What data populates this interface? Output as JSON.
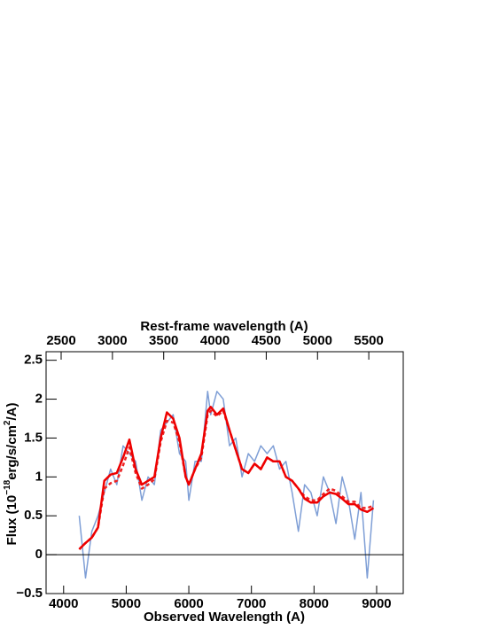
{
  "chart_data": {
    "type": "line",
    "xlabel": "Observed Wavelength (A)",
    "x2label": "Rest-frame wavelength (A)",
    "ylabel_parts": [
      "Flux (10",
      "−18",
      "erg/s/cm",
      "2",
      "/A)"
    ],
    "x": [
      4250,
      4350,
      4450,
      4550,
      4650,
      4750,
      4850,
      4950,
      5050,
      5150,
      5250,
      5350,
      5450,
      5550,
      5650,
      5750,
      5850,
      5950,
      6000,
      6100,
      6200,
      6300,
      6350,
      6450,
      6550,
      6650,
      6750,
      6850,
      6950,
      7050,
      7150,
      7250,
      7350,
      7450,
      7550,
      7650,
      7750,
      7850,
      7950,
      8050,
      8150,
      8250,
      8350,
      8450,
      8550,
      8650,
      8750,
      8850,
      8950
    ],
    "series": [
      {
        "color": "#7f9fd6",
        "style": "solid",
        "values": [
          0.5,
          -0.3,
          0.3,
          0.5,
          0.8,
          1.1,
          0.9,
          1.4,
          1.3,
          1.2,
          0.7,
          1.0,
          0.9,
          1.6,
          1.7,
          1.8,
          1.3,
          1.2,
          0.7,
          1.2,
          1.2,
          2.1,
          1.8,
          2.1,
          2.0,
          1.4,
          1.5,
          1.0,
          1.3,
          1.2,
          1.4,
          1.3,
          1.4,
          1.1,
          1.2,
          0.8,
          0.3,
          0.9,
          0.8,
          0.5,
          1.0,
          0.8,
          0.4,
          1.0,
          0.7,
          0.2,
          0.8,
          -0.3,
          0.7
        ]
      },
      {
        "color": "#ee2222",
        "style": "dashed",
        "values": [
          0.07,
          0.15,
          0.22,
          0.35,
          0.85,
          0.92,
          0.95,
          1.15,
          1.38,
          1.05,
          0.85,
          0.9,
          0.97,
          1.45,
          1.72,
          1.7,
          1.45,
          1.0,
          0.9,
          1.1,
          1.25,
          1.8,
          1.85,
          1.78,
          1.85,
          1.6,
          1.35,
          1.1,
          1.05,
          1.17,
          1.1,
          1.25,
          1.2,
          1.2,
          1.0,
          0.95,
          0.85,
          0.75,
          0.7,
          0.7,
          0.78,
          0.85,
          0.82,
          0.75,
          0.68,
          0.68,
          0.6,
          0.6,
          0.63
        ]
      },
      {
        "color": "#ee0000",
        "style": "solid",
        "values": [
          0.07,
          0.15,
          0.22,
          0.35,
          0.95,
          1.03,
          1.05,
          1.25,
          1.48,
          1.1,
          0.9,
          0.95,
          1.0,
          1.5,
          1.83,
          1.75,
          1.5,
          1.0,
          0.9,
          1.1,
          1.3,
          1.85,
          1.9,
          1.8,
          1.88,
          1.6,
          1.35,
          1.1,
          1.05,
          1.17,
          1.1,
          1.25,
          1.2,
          1.2,
          1.0,
          0.95,
          0.85,
          0.72,
          0.67,
          0.67,
          0.75,
          0.8,
          0.78,
          0.72,
          0.65,
          0.65,
          0.58,
          0.55,
          0.6
        ]
      }
    ],
    "xlim": [
      3720,
      9425
    ],
    "xticks": [
      4000,
      5000,
      6000,
      7000,
      8000,
      9000
    ],
    "x2lim": [
      2353,
      5836
    ],
    "x2ticks": [
      2500,
      3000,
      3500,
      4000,
      4500,
      5000,
      5500
    ],
    "ylim": [
      -0.5,
      2.61
    ],
    "yticks": [
      {
        "value": -0.5,
        "label": "−0.5"
      },
      0,
      0.5,
      1,
      1.5,
      2,
      2.5
    ],
    "reference_line": 0
  }
}
